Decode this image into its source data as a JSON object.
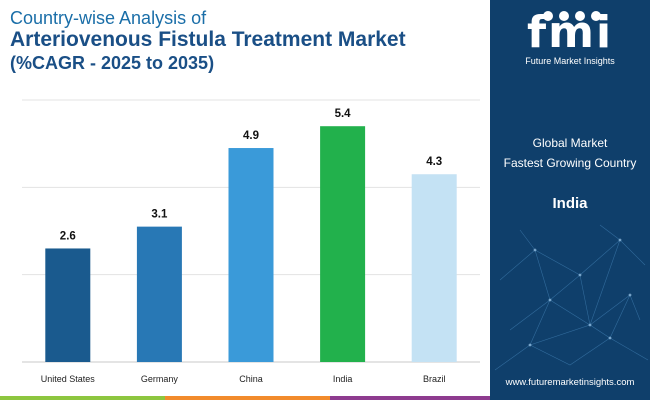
{
  "header": {
    "line1": "Country-wise Analysis of",
    "line2": "Arteriovenous Fistula Treatment Market",
    "line3": "(%CAGR - 2025 to 2035)"
  },
  "panel": {
    "brand": "Future Market Insights",
    "global_market": "Global Market",
    "fastest_label": "Fastest Growing Country",
    "fastest_country": "India",
    "url": "www.futuremarketinsights.com"
  },
  "colors": {
    "panel_bg": "#0f3f6b",
    "title_light": "#1a6ea8",
    "title_dark": "#1a4f86"
  },
  "chart_data": {
    "type": "bar",
    "categories": [
      "United States",
      "Germany",
      "China",
      "India",
      "Brazil"
    ],
    "values": [
      2.6,
      3.1,
      4.9,
      5.4,
      4.3
    ],
    "colors": [
      "#1a5a8e",
      "#2878b5",
      "#3a9ad9",
      "#22b14c",
      "#c4e2f4"
    ],
    "ylim": [
      0,
      6
    ],
    "grid": true,
    "data_labels": true,
    "legend": false
  }
}
